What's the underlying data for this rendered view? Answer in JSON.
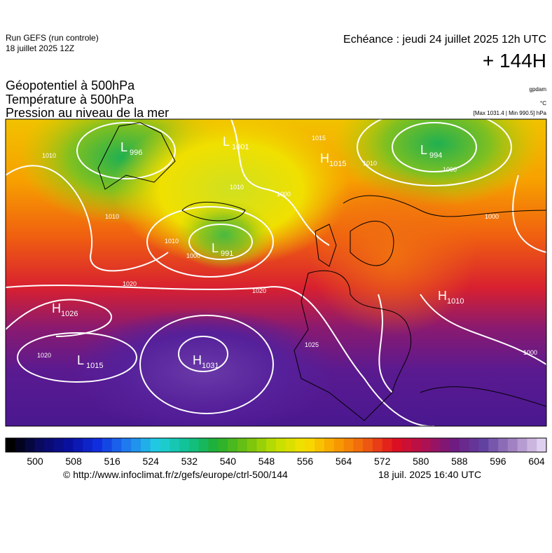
{
  "header": {
    "run": "Run GEFS (run controle)",
    "run_date": "18 juillet 2025 12Z",
    "valid": "Echéance : jeudi 24 juillet 2025 12h UTC",
    "lead": "+ 144H",
    "fields": [
      "Géopotentiel à 500hPa",
      "Température à 500hPa",
      "Pression au niveau de la mer"
    ],
    "unit_geo": "gpdam",
    "unit_temp": "°C",
    "extremes": "[Max 1031.4 | Min 990.5] hPa"
  },
  "map": {
    "centers": [
      {
        "letter": "L",
        "value": 996
      },
      {
        "letter": "L",
        "value": 1001
      },
      {
        "letter": "H",
        "value": 1015
      },
      {
        "letter": "L",
        "value": 994
      },
      {
        "letter": "L",
        "value": 991
      },
      {
        "letter": "H",
        "value": 1026
      },
      {
        "letter": "H",
        "value": 1010
      },
      {
        "letter": "L",
        "value": 1015
      },
      {
        "letter": "H",
        "value": 1031
      }
    ],
    "isobar_labels": [
      1010,
      1010,
      1010,
      1000,
      1020,
      1020,
      1020,
      1025,
      1010,
      1000,
      1015,
      1010,
      1000,
      1000,
      1000
    ]
  },
  "colorbar": {
    "ticks": [
      500,
      508,
      516,
      524,
      532,
      540,
      548,
      556,
      564,
      572,
      580,
      588,
      596,
      604
    ]
  },
  "footer": {
    "source": "© http://www.infoclimat.fr/z/gefs/europe/ctrl-500/144",
    "generated": "18 juil. 2025 16:40 UTC"
  }
}
